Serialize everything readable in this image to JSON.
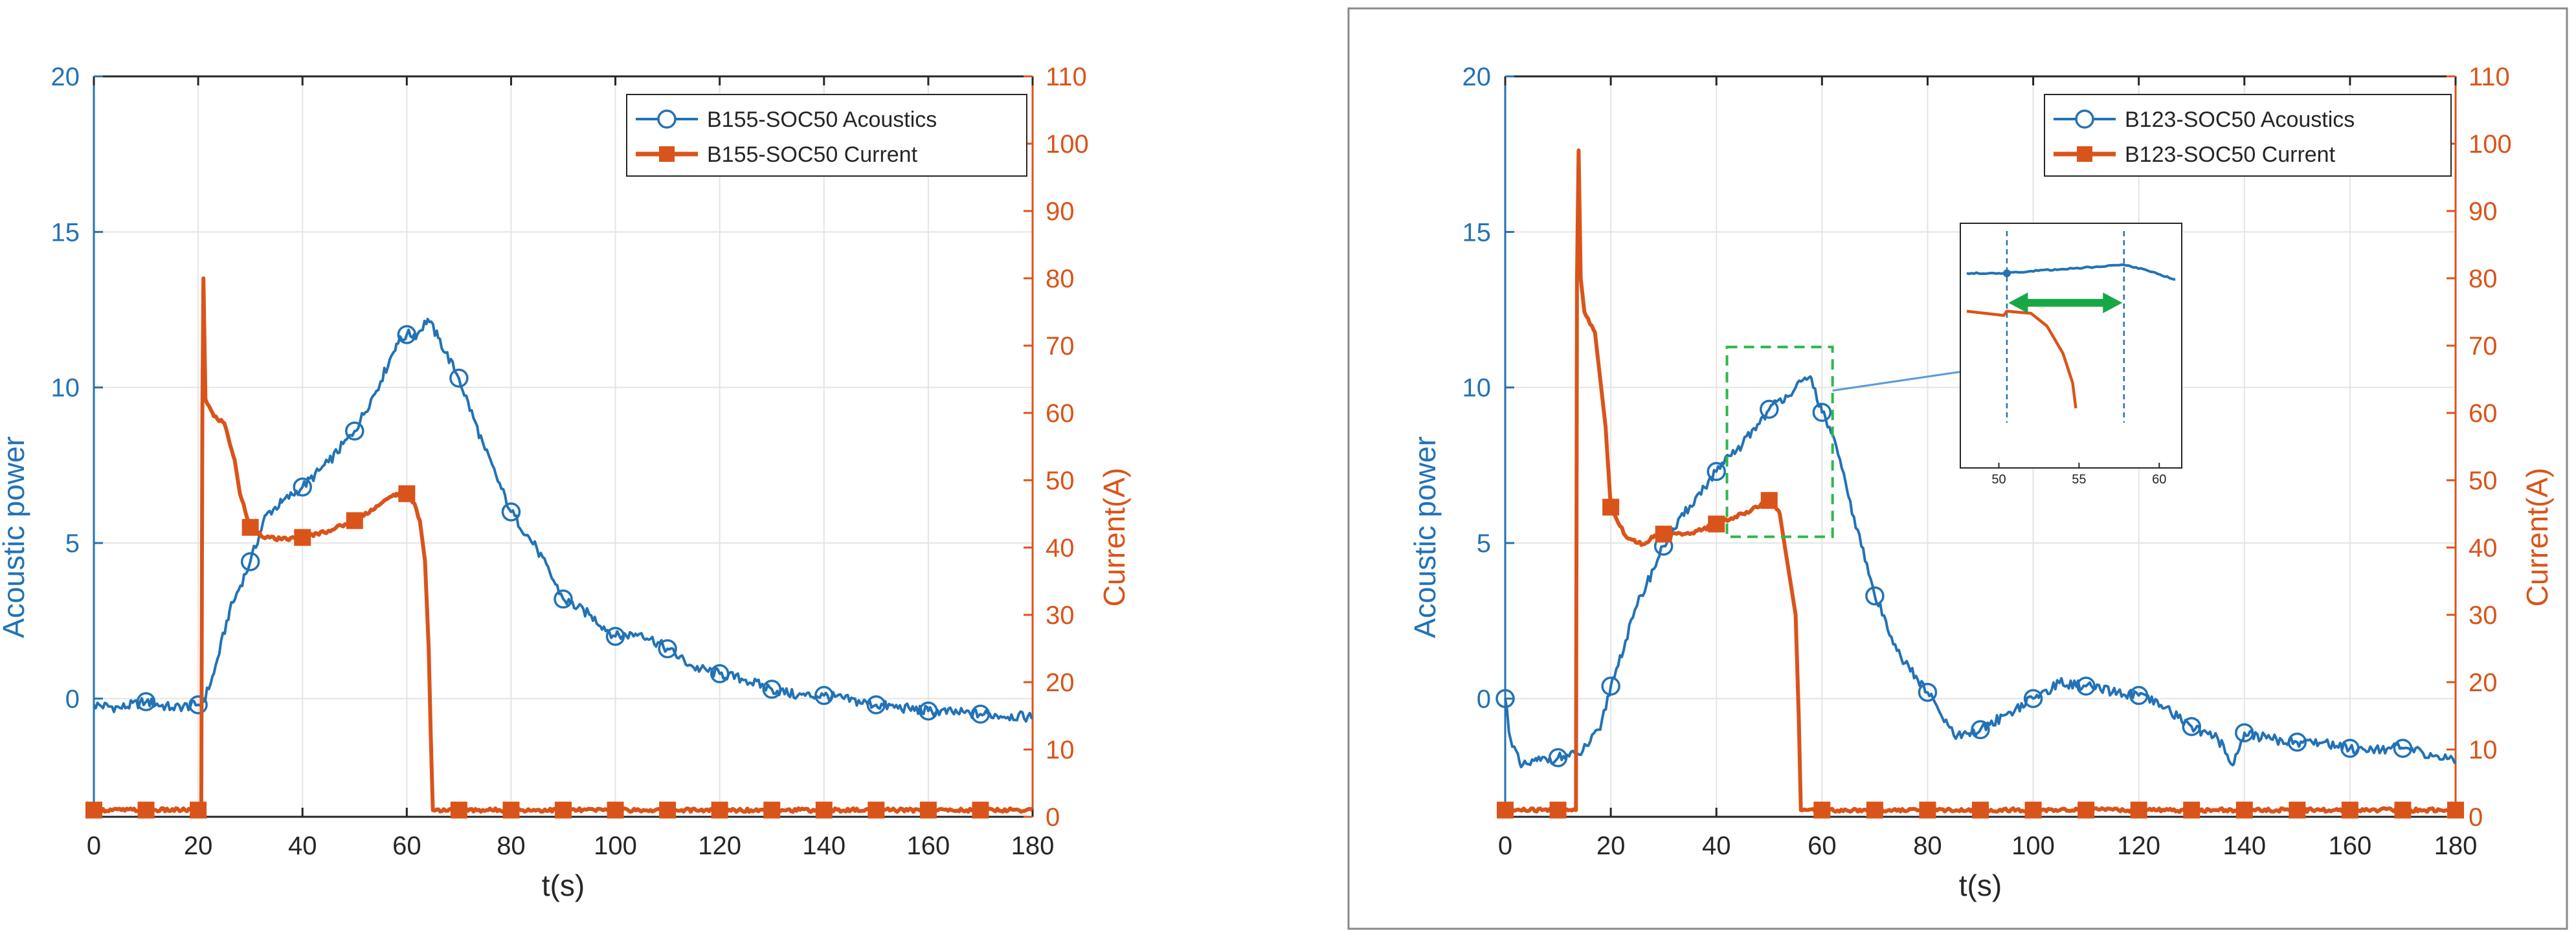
{
  "colors": {
    "acoustic": "#2272B6",
    "current": "#D9541A",
    "grid": "#E4E4E4",
    "axis": "#262626",
    "highlight_box": "#2DB84A",
    "arrow": "#17A846",
    "frame": "#8A8A8A"
  },
  "chart_data": [
    {
      "type": "line",
      "title": "",
      "xlabel": "t(s)",
      "ylabel_left": "Acoustic power",
      "ylabel_right": "Current(A)",
      "xlim": [
        0,
        180
      ],
      "ylim_left": [
        -3.8,
        20
      ],
      "ylim_right": [
        0,
        110
      ],
      "xticks": [
        "0",
        "20",
        "40",
        "60",
        "80",
        "100",
        "120",
        "140",
        "160",
        "180"
      ],
      "yticks_left": [
        "0",
        "5",
        "10",
        "15",
        "20"
      ],
      "yticks_right": [
        "0",
        "10",
        "20",
        "30",
        "40",
        "50",
        "60",
        "70",
        "80",
        "90",
        "100",
        "110"
      ],
      "grid": true,
      "legend_position": "top-right",
      "series": [
        {
          "name": "B155-SOC50 Acoustics",
          "axis": "left",
          "marker": "circle",
          "x": [
            0,
            5,
            10,
            15,
            20,
            21,
            23,
            26,
            30,
            33,
            36,
            40,
            45,
            50,
            55,
            58,
            60,
            62,
            64,
            66,
            70,
            75,
            80,
            85,
            90,
            95,
            100,
            105,
            110,
            115,
            120,
            125,
            130,
            135,
            140,
            150,
            160,
            170,
            180
          ],
          "y": [
            -0.2,
            -0.3,
            -0.1,
            -0.3,
            -0.2,
            -0.1,
            0.8,
            2.8,
            4.4,
            5.9,
            6.3,
            6.8,
            7.6,
            8.6,
            10.2,
            11.4,
            11.7,
            11.7,
            12.2,
            11.6,
            10.3,
            8.0,
            6.0,
            4.8,
            3.2,
            2.7,
            2.0,
            2.1,
            1.6,
            1.0,
            0.8,
            0.6,
            0.3,
            0.1,
            0.1,
            -0.2,
            -0.4,
            -0.5,
            -0.6
          ],
          "marker_x": [
            10,
            20,
            30,
            40,
            50,
            60,
            70,
            80,
            90,
            100,
            110,
            120,
            130,
            140,
            150,
            160,
            170
          ]
        },
        {
          "name": "B155-SOC50 Current",
          "axis": "right",
          "marker": "square",
          "x": [
            0,
            20.6,
            20.8,
            21.0,
            21.4,
            23,
            25,
            27,
            28,
            30,
            33,
            36,
            40,
            45,
            50,
            55,
            58,
            60,
            61.5,
            62.5,
            63.5,
            64.2,
            64.6,
            65,
            70,
            180
          ],
          "y": [
            1,
            1,
            60,
            80,
            62,
            59.5,
            58.5,
            53,
            48,
            43,
            41.5,
            41.2,
            41.5,
            42.5,
            44,
            46.5,
            48,
            48,
            46.5,
            44,
            38,
            25,
            12,
            1,
            1,
            1
          ],
          "marker_x": [
            0,
            10,
            20,
            30,
            40,
            50,
            60,
            70,
            80,
            90,
            100,
            110,
            120,
            130,
            140,
            150,
            160,
            170
          ]
        }
      ]
    },
    {
      "type": "line",
      "title": "",
      "xlabel": "t(s)",
      "ylabel_left": "Acoustic power",
      "ylabel_right": "Current(A)",
      "xlim": [
        0,
        180
      ],
      "ylim_left": [
        -3.8,
        20
      ],
      "ylim_right": [
        0,
        110
      ],
      "xticks": [
        "0",
        "20",
        "40",
        "60",
        "80",
        "100",
        "120",
        "140",
        "160",
        "180"
      ],
      "yticks_left": [
        "0",
        "5",
        "10",
        "15",
        "20"
      ],
      "yticks_right": [
        "0",
        "10",
        "20",
        "30",
        "40",
        "50",
        "60",
        "70",
        "80",
        "90",
        "100",
        "110"
      ],
      "grid": true,
      "legend_position": "top-right",
      "series": [
        {
          "name": "B123-SOC50 Acoustics",
          "axis": "left",
          "marker": "circle",
          "x": [
            0,
            1,
            3,
            6,
            10,
            14,
            18,
            20,
            25,
            30,
            35,
            40,
            45,
            50,
            55,
            58,
            60,
            62,
            65,
            70,
            75,
            80,
            85,
            88,
            90,
            95,
            100,
            105,
            110,
            115,
            120,
            125,
            130,
            135,
            138,
            140,
            145,
            150,
            155,
            160,
            170,
            180
          ],
          "y": [
            0.0,
            -1.3,
            -2.2,
            -2.0,
            -1.9,
            -1.8,
            -1.0,
            0.4,
            3.0,
            4.9,
            6.2,
            7.3,
            8.2,
            9.3,
            10.0,
            10.3,
            9.2,
            8.5,
            6.5,
            3.3,
            1.3,
            0.2,
            -1.2,
            -1.2,
            -1.0,
            -0.5,
            0.0,
            0.5,
            0.4,
            0.2,
            0.1,
            -0.3,
            -0.9,
            -1.3,
            -2.1,
            -1.1,
            -1.3,
            -1.4,
            -1.4,
            -1.6,
            -1.6,
            -2.0
          ],
          "marker_x": [
            0,
            10,
            20,
            30,
            40,
            50,
            60,
            70,
            80,
            90,
            100,
            110,
            120,
            130,
            140,
            150,
            160,
            170
          ]
        },
        {
          "name": "B123-SOC50 Current",
          "axis": "right",
          "marker": "square",
          "x": [
            0,
            13.4,
            13.6,
            13.9,
            14.3,
            15,
            17,
            19,
            20,
            23,
            26,
            28,
            30,
            35,
            40,
            45,
            50,
            52,
            53,
            54,
            55,
            55.6,
            56,
            57,
            180
          ],
          "y": [
            1,
            1,
            80,
            99,
            80,
            75,
            72,
            58,
            46,
            41.5,
            40.5,
            41.5,
            42,
            42,
            43.5,
            45,
            47,
            45,
            40,
            35,
            30,
            15,
            1,
            1,
            1
          ],
          "marker_x": [
            0,
            10,
            20,
            30,
            40,
            50,
            60,
            70,
            80,
            90,
            100,
            110,
            120,
            130,
            140,
            150,
            160,
            170,
            180
          ]
        }
      ],
      "inset": {
        "xticks": [
          "50",
          "55",
          "60"
        ],
        "xlim": [
          48,
          61
        ],
        "dashed_lines_x": [
          50.5,
          57.8
        ],
        "acoustic": {
          "x": [
            48,
            50,
            52,
            54,
            56,
            57.8,
            59,
            61
          ],
          "y": [
            0.8,
            0.8,
            0.81,
            0.82,
            0.83,
            0.84,
            0.82,
            0.77
          ]
        },
        "current": {
          "x": [
            48,
            50.3,
            50.5,
            52,
            53,
            54,
            54.6,
            54.8
          ],
          "y": [
            0.62,
            0.6,
            0.62,
            0.61,
            0.55,
            0.42,
            0.28,
            0.16
          ]
        }
      }
    }
  ]
}
